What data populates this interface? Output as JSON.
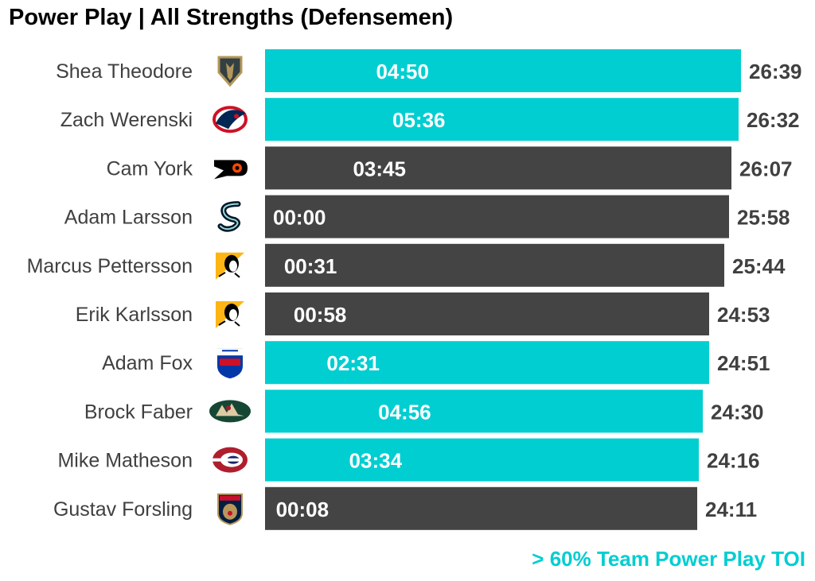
{
  "title": "Power Play | All Strengths (Defensemen)",
  "legend_note": "> 60% Team Power Play TOI",
  "colors": {
    "highlight": "#00CED1",
    "normal": "#444444"
  },
  "chart_data": {
    "type": "bar",
    "orientation": "horizontal",
    "title": "Power Play | All Strengths (Defensemen)",
    "categories": [
      "Shea Theodore",
      "Zach Werenski",
      "Cam York",
      "Adam Larsson",
      "Marcus Pettersson",
      "Erik Karlsson",
      "Adam Fox",
      "Brock Faber",
      "Mike Matheson",
      "Gustav Forsling"
    ],
    "team_icons": [
      "vgk-logo-icon",
      "cbj-logo-icon",
      "phi-logo-icon",
      "sea-logo-icon",
      "pit-logo-icon",
      "pit-logo-icon",
      "nyr-logo-icon",
      "min-logo-icon",
      "mtl-logo-icon",
      "fla-logo-icon"
    ],
    "series": [
      {
        "values_label": [
          "26:39",
          "26:32",
          "26:07",
          "25:58",
          "25:44",
          "24:53",
          "24:51",
          "24:30",
          "24:16",
          "24:11"
        ],
        "values_seconds": [
          1599,
          1592,
          1567,
          1558,
          1544,
          1493,
          1491,
          1470,
          1456,
          1451
        ]
      },
      {
        "values_label": [
          "04:50",
          "05:36",
          "03:45",
          "00:00",
          "00:31",
          "00:58",
          "02:31",
          "04:56",
          "03:34",
          "00:08"
        ],
        "values_seconds": [
          290,
          336,
          225,
          0,
          31,
          58,
          151,
          296,
          214,
          8
        ]
      }
    ],
    "highlight": [
      true,
      true,
      false,
      false,
      false,
      false,
      true,
      true,
      true,
      false
    ],
    "xlim": [
      0,
      1599
    ],
    "grid": false,
    "legend": "bottom-right"
  }
}
